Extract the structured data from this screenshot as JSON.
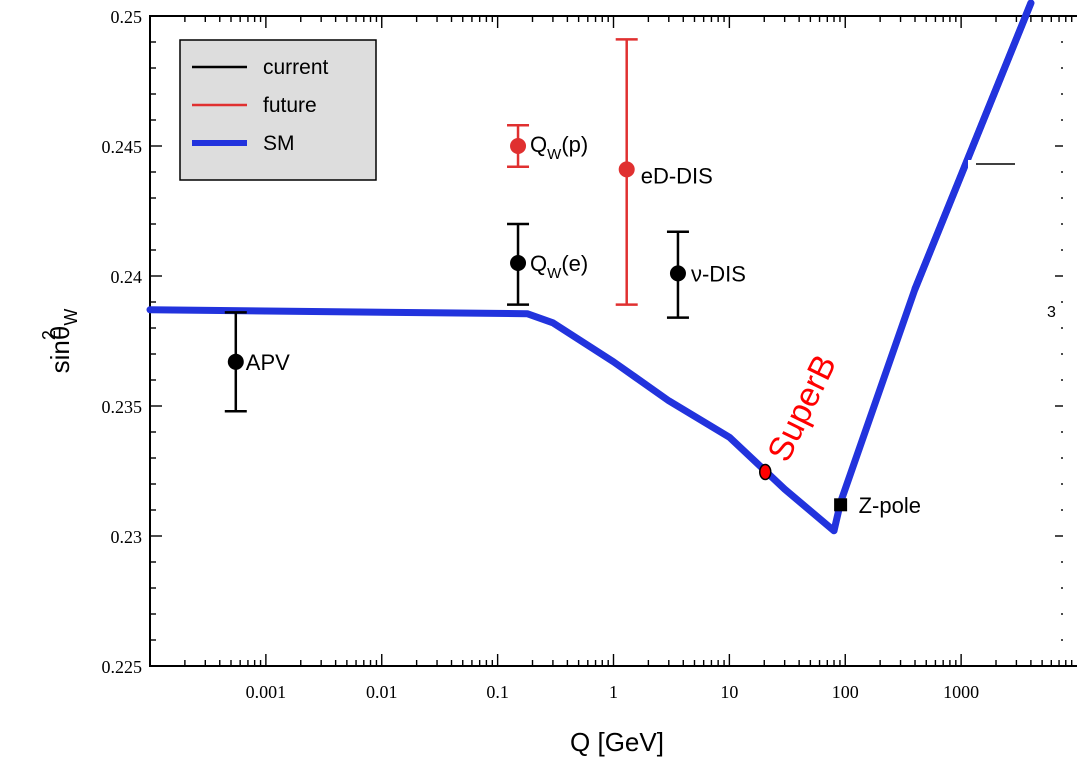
{
  "chart_data": {
    "type": "scatter",
    "xlabel": "Q [GeV]",
    "ylabel": "sin²θW",
    "ylabel_parts": {
      "sup": "2",
      "base": "sin",
      "theta": "θ",
      "sub": "W"
    },
    "xscale": "log",
    "xlim": [
      0.0001,
      10000
    ],
    "ylim": [
      0.225,
      0.25
    ],
    "x_ticks": [
      {
        "value": 0.001,
        "label": "0.001"
      },
      {
        "value": 0.01,
        "label": "0.01"
      },
      {
        "value": 0.1,
        "label": "0.1"
      },
      {
        "value": 1,
        "label": "1"
      },
      {
        "value": 10,
        "label": "10"
      },
      {
        "value": 100,
        "label": "100"
      },
      {
        "value": 1000,
        "label": "1000"
      }
    ],
    "y_ticks": [
      {
        "value": 0.225,
        "label": "0.225"
      },
      {
        "value": 0.23,
        "label": "0.23"
      },
      {
        "value": 0.235,
        "label": "0.235"
      },
      {
        "value": 0.24,
        "label": "0.24"
      },
      {
        "value": 0.245,
        "label": "0.245"
      },
      {
        "value": 0.25,
        "label": "0.25"
      }
    ],
    "legend": {
      "placement": "top-left",
      "entries": [
        {
          "label": "current",
          "color": "#000000",
          "style": "thin"
        },
        {
          "label": "future",
          "color": "#e03030",
          "style": "thin"
        },
        {
          "label": "SM",
          "color": "#2233dd",
          "style": "thick"
        }
      ]
    },
    "sm_curve": {
      "name": "SM",
      "color": "#2233dd",
      "points": [
        [
          0.0001,
          0.2387
        ],
        [
          0.18,
          0.23855
        ],
        [
          0.3,
          0.2382
        ],
        [
          1,
          0.2367
        ],
        [
          3,
          0.2352
        ],
        [
          10,
          0.2338
        ],
        [
          30,
          0.2318
        ],
        [
          80,
          0.2302
        ],
        [
          91.2,
          0.2313
        ],
        [
          400,
          0.2395
        ],
        [
          4000,
          0.2505
        ]
      ]
    },
    "points": [
      {
        "label": "APV",
        "label_main": "APV",
        "x": 0.00055,
        "y": 0.2367,
        "ylo": 0.2348,
        "yhi": 0.2386,
        "group": "current",
        "marker": "circle"
      },
      {
        "label": "Qw(e)",
        "label_main": "Q",
        "label_sub": "W",
        "label_tail": "(e)",
        "x": 0.15,
        "y": 0.2405,
        "ylo": 0.2389,
        "yhi": 0.242,
        "group": "current",
        "marker": "circle"
      },
      {
        "label": "ν-DIS",
        "label_main": "ν-DIS",
        "x": 3.6,
        "y": 0.2401,
        "ylo": 0.2384,
        "yhi": 0.2417,
        "group": "current",
        "marker": "circle"
      },
      {
        "label": "Z-pole",
        "label_main": "Z-pole",
        "x": 91.2,
        "y": 0.2312,
        "ylo": 0.2312,
        "yhi": 0.2312,
        "group": "current",
        "marker": "square"
      },
      {
        "label": "Qw(p)",
        "label_main": "Q",
        "label_sub": "W",
        "label_tail": "(p)",
        "x": 0.15,
        "y": 0.245,
        "ylo": 0.2442,
        "yhi": 0.2458,
        "group": "future",
        "marker": "circle"
      },
      {
        "label": "eD-DIS",
        "label_main": "eD-DIS",
        "x": 1.3,
        "y": 0.2441,
        "ylo": 0.2389,
        "yhi": 0.2491,
        "group": "future",
        "marker": "circle"
      }
    ],
    "annotation": {
      "text": "SuperB",
      "x": 20,
      "y": 0.2325,
      "color": "#ff0000"
    },
    "clipped_text": "3"
  }
}
